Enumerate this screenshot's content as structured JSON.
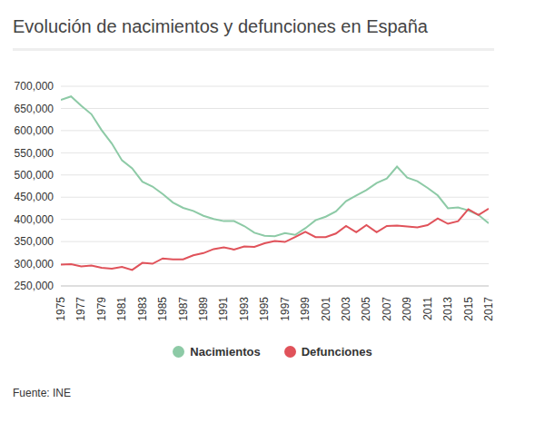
{
  "chart_data": {
    "type": "line",
    "title": "Evolución de nacimientos y defunciones en España",
    "source": "Fuente: INE",
    "x": [
      1975,
      1976,
      1977,
      1978,
      1979,
      1980,
      1981,
      1982,
      1983,
      1984,
      1985,
      1986,
      1987,
      1988,
      1989,
      1990,
      1991,
      1992,
      1993,
      1994,
      1995,
      1996,
      1997,
      1998,
      1999,
      2000,
      2001,
      2002,
      2003,
      2004,
      2005,
      2006,
      2007,
      2008,
      2009,
      2010,
      2011,
      2012,
      2013,
      2014,
      2015,
      2016,
      2017
    ],
    "series": [
      {
        "name": "Nacimientos",
        "color": "#8dcaa6",
        "values": [
          669000,
          677000,
          656000,
          637000,
          601000,
          571000,
          533000,
          515000,
          485000,
          474000,
          457000,
          438000,
          426000,
          419000,
          408000,
          401000,
          396000,
          396000,
          385000,
          370000,
          363000,
          362000,
          369000,
          365000,
          380000,
          398000,
          406000,
          418000,
          441000,
          454000,
          466000,
          482000,
          492000,
          519000,
          494000,
          486000,
          471000,
          454000,
          425000,
          427000,
          420000,
          410000,
          391000
        ]
      },
      {
        "name": "Defunciones",
        "color": "#e0525a",
        "values": [
          298000,
          299000,
          294000,
          296000,
          291000,
          289000,
          293000,
          286000,
          302000,
          300000,
          312000,
          310000,
          310000,
          319000,
          324000,
          333000,
          337000,
          332000,
          339000,
          338000,
          346000,
          351000,
          349000,
          360000,
          372000,
          360000,
          360000,
          368000,
          385000,
          371000,
          387000,
          371000,
          385000,
          386000,
          384000,
          382000,
          387000,
          402000,
          390000,
          396000,
          423000,
          410000,
          424000
        ]
      }
    ],
    "xlim": [
      1975,
      2017
    ],
    "xticks": [
      1975,
      1977,
      1979,
      1981,
      1983,
      1985,
      1987,
      1989,
      1991,
      1993,
      1995,
      1997,
      1999,
      2001,
      2003,
      2005,
      2007,
      2009,
      2011,
      2013,
      2015,
      2017
    ],
    "ylim": [
      250000,
      700000
    ],
    "yticks": [
      {
        "value": 250000,
        "label": "250,000"
      },
      {
        "value": 300000,
        "label": "300,000"
      },
      {
        "value": 350000,
        "label": "350,000"
      },
      {
        "value": 400000,
        "label": "400,000"
      },
      {
        "value": 450000,
        "label": "450,000"
      },
      {
        "value": 500000,
        "label": "500,000"
      },
      {
        "value": 550000,
        "label": "550,000"
      },
      {
        "value": 600000,
        "label": "600,000"
      },
      {
        "value": 650000,
        "label": "650,000"
      },
      {
        "value": 700000,
        "label": "700,000"
      }
    ],
    "grid": true,
    "legend": "bottom"
  }
}
